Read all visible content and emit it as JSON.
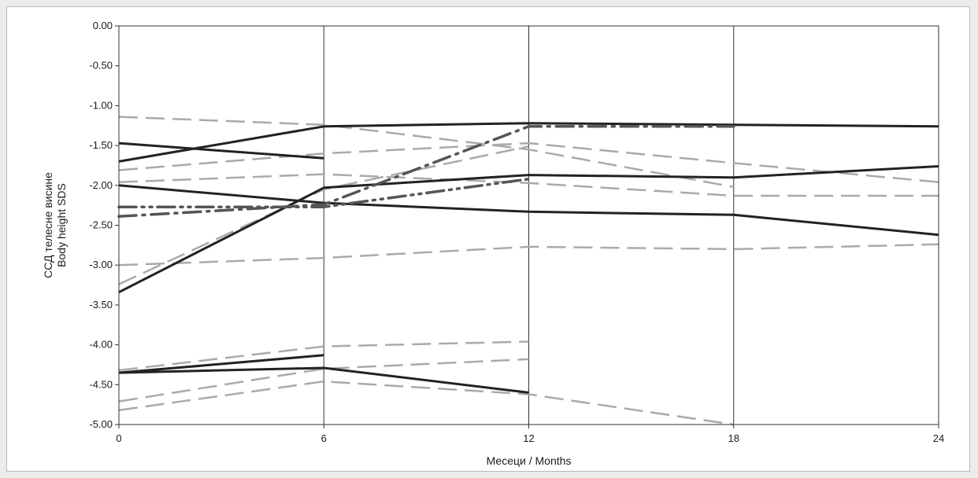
{
  "chart_data": {
    "type": "line",
    "xlabel": "Месеци / Months",
    "ylabel_lines": [
      "ССД телесне висине",
      "Body height SDS"
    ],
    "x_ticks": [
      "0",
      "6",
      "12",
      "18",
      "24"
    ],
    "y_ticks": [
      "0.00",
      "-0.50",
      "-1.00",
      "-1.50",
      "-2.00",
      "-2.50",
      "-3.00",
      "-3.50",
      "-4.00",
      "-4.50",
      "-5.00"
    ],
    "xlim": [
      0,
      24
    ],
    "ylim": [
      -5,
      0
    ],
    "grid": "vertical",
    "legend": "none",
    "series": [
      {
        "color": "#222222",
        "dash": "solid",
        "points": [
          [
            0,
            -1.47
          ],
          [
            6,
            -1.66
          ]
        ]
      },
      {
        "color": "#222222",
        "dash": "solid",
        "points": [
          [
            0,
            -1.7
          ],
          [
            6,
            -1.26
          ],
          [
            12,
            -1.22
          ],
          [
            18,
            -1.24
          ],
          [
            24,
            -1.26
          ]
        ]
      },
      {
        "color": "#222222",
        "dash": "solid",
        "points": [
          [
            0,
            -2.0
          ],
          [
            6,
            -2.22
          ],
          [
            12,
            -2.33
          ],
          [
            18,
            -2.37
          ],
          [
            24,
            -2.62
          ]
        ]
      },
      {
        "color": "#222222",
        "dash": "solid",
        "points": [
          [
            0,
            -3.34
          ],
          [
            6,
            -2.03
          ],
          [
            12,
            -1.87
          ],
          [
            18,
            -1.9
          ],
          [
            24,
            -1.76
          ]
        ]
      },
      {
        "color": "#222222",
        "dash": "solid",
        "points": [
          [
            0,
            -4.35
          ],
          [
            6,
            -4.13
          ]
        ]
      },
      {
        "color": "#222222",
        "dash": "solid",
        "points": [
          [
            0,
            -4.35
          ],
          [
            6,
            -4.29
          ],
          [
            12,
            -4.6
          ]
        ]
      },
      {
        "color": "#aaaaaa",
        "dash": "long",
        "points": [
          [
            0,
            -1.14
          ],
          [
            6,
            -1.24
          ],
          [
            12,
            -1.55
          ],
          [
            18,
            -2.02
          ]
        ]
      },
      {
        "color": "#aaaaaa",
        "dash": "long",
        "points": [
          [
            0,
            -1.81
          ],
          [
            6,
            -1.6
          ],
          [
            12,
            -1.47
          ],
          [
            18,
            -1.72
          ],
          [
            24,
            -1.96
          ]
        ]
      },
      {
        "color": "#aaaaaa",
        "dash": "long",
        "points": [
          [
            0,
            -1.96
          ],
          [
            6,
            -1.86
          ],
          [
            12,
            -1.97
          ],
          [
            18,
            -2.13
          ],
          [
            24,
            -2.13
          ]
        ]
      },
      {
        "color": "#aaaaaa",
        "dash": "long",
        "points": [
          [
            0,
            -3.0
          ],
          [
            6,
            -2.91
          ],
          [
            12,
            -2.77
          ],
          [
            18,
            -2.8
          ],
          [
            24,
            -2.74
          ]
        ]
      },
      {
        "color": "#aaaaaa",
        "dash": "long",
        "points": [
          [
            0,
            -3.24
          ],
          [
            6,
            -2.05
          ],
          [
            12,
            -1.51
          ]
        ]
      },
      {
        "color": "#aaaaaa",
        "dash": "long",
        "points": [
          [
            0,
            -4.32
          ],
          [
            6,
            -4.02
          ],
          [
            12,
            -3.96
          ]
        ]
      },
      {
        "color": "#aaaaaa",
        "dash": "long",
        "points": [
          [
            0,
            -4.71
          ],
          [
            6,
            -4.3
          ],
          [
            12,
            -4.18
          ]
        ]
      },
      {
        "color": "#aaaaaa",
        "dash": "long",
        "points": [
          [
            0,
            -4.82
          ],
          [
            6,
            -4.46
          ],
          [
            12,
            -4.62
          ],
          [
            18,
            -5.0
          ]
        ]
      },
      {
        "color": "#555555",
        "dash": "dashdotdot",
        "points": [
          [
            0,
            -2.27
          ],
          [
            6,
            -2.27
          ],
          [
            12,
            -1.92
          ]
        ]
      },
      {
        "color": "#555555",
        "dash": "dashdot",
        "points": [
          [
            0,
            -2.39
          ],
          [
            6,
            -2.24
          ],
          [
            12,
            -1.26
          ],
          [
            18,
            -1.26
          ]
        ]
      }
    ]
  }
}
